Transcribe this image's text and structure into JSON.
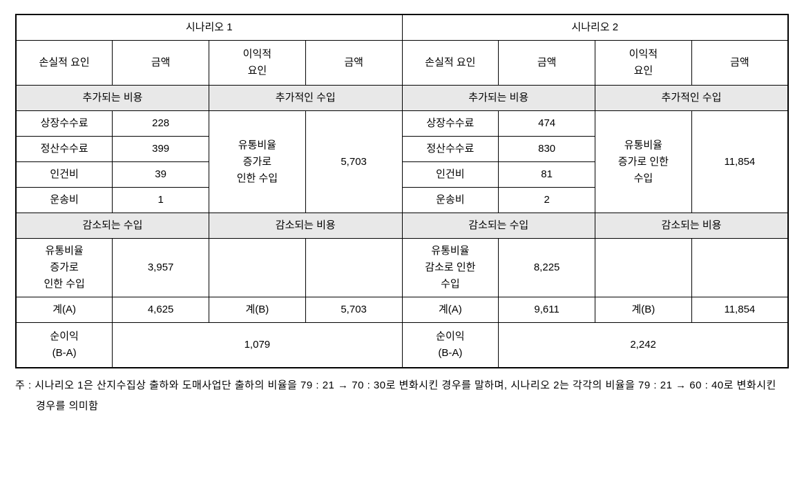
{
  "table": {
    "scenario1_header": "시나리오 1",
    "scenario2_header": "시나리오 2",
    "col_loss_factor": "손실적 요인",
    "col_amount": "금액",
    "col_profit_factor": "이익적\n요인",
    "subhead_added_cost": "추가되는 비용",
    "subhead_added_income": "추가적인 수입",
    "subhead_reduced_income": "감소되는 수입",
    "subhead_reduced_cost": "감소되는 비용",
    "row_listing_fee": "상장수수료",
    "row_settlement_fee": "정산수수료",
    "row_labor": "인건비",
    "row_transport": "운송비",
    "profit_label_s1": "유통비율\n증가로\n인한 수입",
    "profit_label_s2": "유통비율\n증가로 인한\n수입",
    "reduced_income_label_s1": "유통비율\n증가로\n인한 수입",
    "reduced_income_label_s2": "유통비율\n감소로 인한\n수입",
    "total_a_label": "계(A)",
    "total_b_label": "계(B)",
    "net_profit_label": "순이익\n(B-A)",
    "s1": {
      "listing_fee": "228",
      "settlement_fee": "399",
      "labor": "39",
      "transport": "1",
      "profit_income": "5,703",
      "reduced_income": "3,957",
      "total_a": "4,625",
      "total_b": "5,703",
      "net": "1,079"
    },
    "s2": {
      "listing_fee": "474",
      "settlement_fee": "830",
      "labor": "81",
      "transport": "2",
      "profit_income": "11,854",
      "reduced_income": "8,225",
      "total_a": "9,611",
      "total_b": "11,854",
      "net": "2,242"
    }
  },
  "footnote": "주 : 시나리오 1은 산지수집상 출하와 도매사업단 출하의 비율을 79 : 21 → 70 : 30로 변화시킨 경우를 말하며, 시나리오 2는 각각의 비율을 79 : 21 → 60 : 40로 변화시킨 경우를 의미함"
}
